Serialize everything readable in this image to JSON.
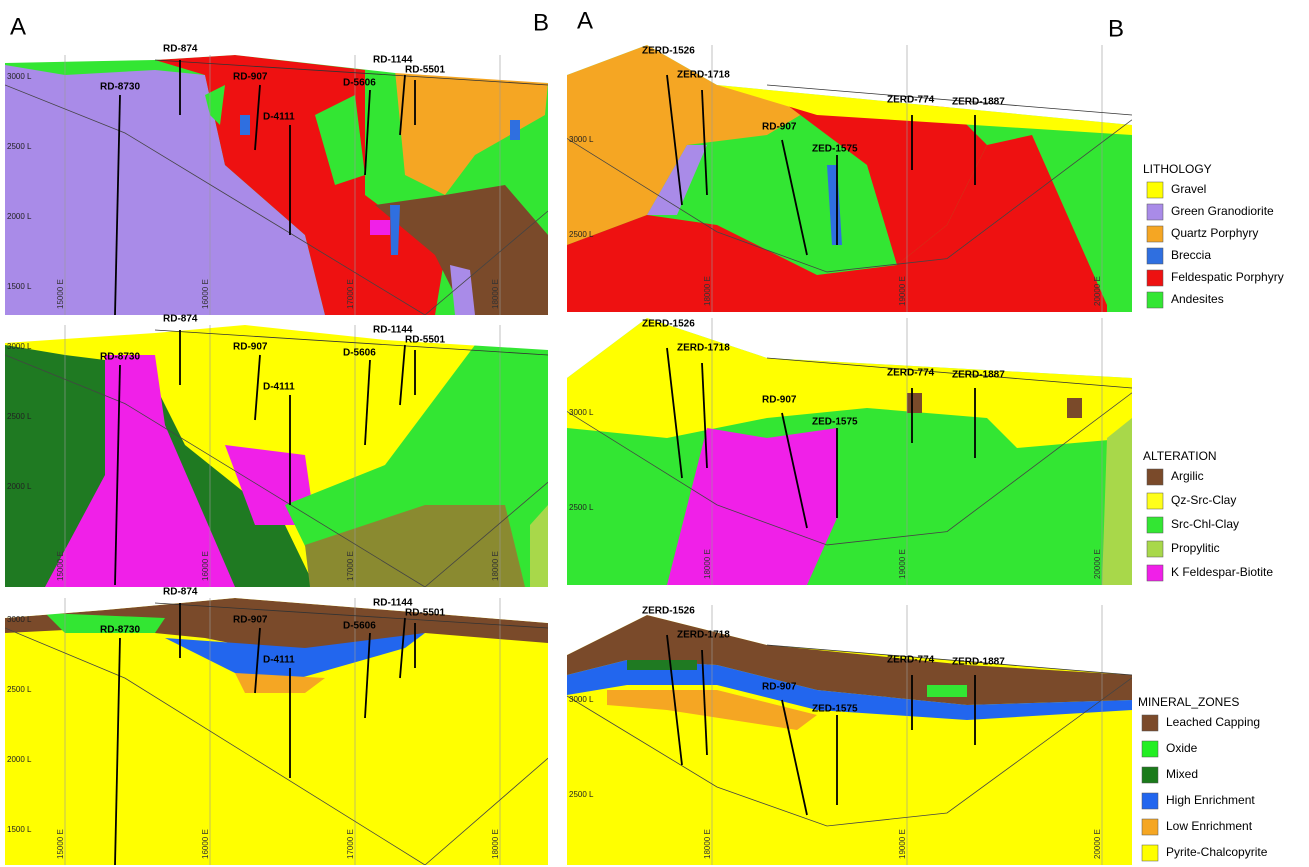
{
  "section_labels": {
    "left": [
      "A",
      "B"
    ],
    "right": [
      "A",
      "B"
    ]
  },
  "panels": [
    {
      "holes": [
        "RD-874",
        "RD-907",
        "RD-8730",
        "D-4111",
        "D-5606",
        "RD-1144",
        "RD-5501"
      ],
      "elevations": [
        "3000 L",
        "2500 L",
        "2000 L",
        "1500 L"
      ],
      "eastings": [
        "15000 E",
        "16000 E",
        "17000 E",
        "18000 E"
      ]
    },
    {
      "holes": [
        "ZERD-1526",
        "ZERD-1718",
        "RD-907",
        "ZED-1575",
        "ZERD-774",
        "ZERD-1887"
      ],
      "elevations": [
        "3000 L",
        "2500 L"
      ],
      "eastings": [
        "18000 E",
        "19000 E",
        "20000 E"
      ]
    },
    {
      "holes": [
        "RD-874",
        "RD-907",
        "RD-8730",
        "D-4111",
        "D-5606",
        "RD-1144",
        "RD-5501"
      ],
      "elevations": [
        "3000 L",
        "2500 L",
        "2000 L"
      ],
      "eastings": [
        "15000 E",
        "16000 E",
        "17000 E",
        "18000 E"
      ]
    },
    {
      "holes": [
        "ZERD-1526",
        "ZERD-1718",
        "RD-907",
        "ZED-1575",
        "ZERD-774",
        "ZERD-1887"
      ],
      "elevations": [
        "3000 L",
        "2500 L"
      ],
      "eastings": [
        "18000 E",
        "19000 E",
        "20000 E"
      ]
    },
    {
      "holes": [
        "RD-874",
        "RD-907",
        "RD-8730",
        "D-4111",
        "D-5606",
        "RD-1144",
        "RD-5501"
      ],
      "elevations": [
        "3000 L",
        "2500 L",
        "2000 L",
        "1500 L"
      ],
      "eastings": [
        "15000 E",
        "16000 E",
        "17000 E",
        "18000 E"
      ]
    },
    {
      "holes": [
        "ZERD-1526",
        "ZERD-1718",
        "RD-907",
        "ZED-1575",
        "ZERD-774",
        "ZERD-1887"
      ],
      "elevations": [
        "3000 L",
        "2500 L"
      ],
      "eastings": [
        "18000 E",
        "19000 E",
        "20000 E"
      ]
    }
  ],
  "legends": [
    {
      "title": "LITHOLOGY",
      "items": [
        {
          "label": "Gravel",
          "color": "#ffff00"
        },
        {
          "label": "Green Granodiorite",
          "color": "#a98be8"
        },
        {
          "label": "Quartz Porphyry",
          "color": "#f5a623"
        },
        {
          "label": "Breccia",
          "color": "#2f6fe0"
        },
        {
          "label": "Feldespatic Porphyry",
          "color": "#ee1111"
        },
        {
          "label": "Andesites",
          "color": "#33e633"
        }
      ]
    },
    {
      "title": "ALTERATION",
      "items": [
        {
          "label": "Argilic",
          "color": "#7a4a2a"
        },
        {
          "label": "Qz-Src-Clay",
          "color": "#ffff1a"
        },
        {
          "label": "Src-Chl-Clay",
          "color": "#33e633"
        },
        {
          "label": "Propylitic",
          "color": "#a8d84a"
        },
        {
          "label": "K Feldespar-Biotite",
          "color": "#f020e8"
        }
      ]
    },
    {
      "title": "MINERAL_ZONES",
      "items": [
        {
          "label": "Leached Capping",
          "color": "#7b4a2a"
        },
        {
          "label": "Oxide",
          "color": "#22ee22"
        },
        {
          "label": "Mixed",
          "color": "#1a7a1a"
        },
        {
          "label": "High Enrichment",
          "color": "#2266ee"
        },
        {
          "label": "Low Enrichment",
          "color": "#f5a623"
        },
        {
          "label": "Pyrite-Chalcopyrite",
          "color": "#ffff00"
        }
      ]
    }
  ]
}
